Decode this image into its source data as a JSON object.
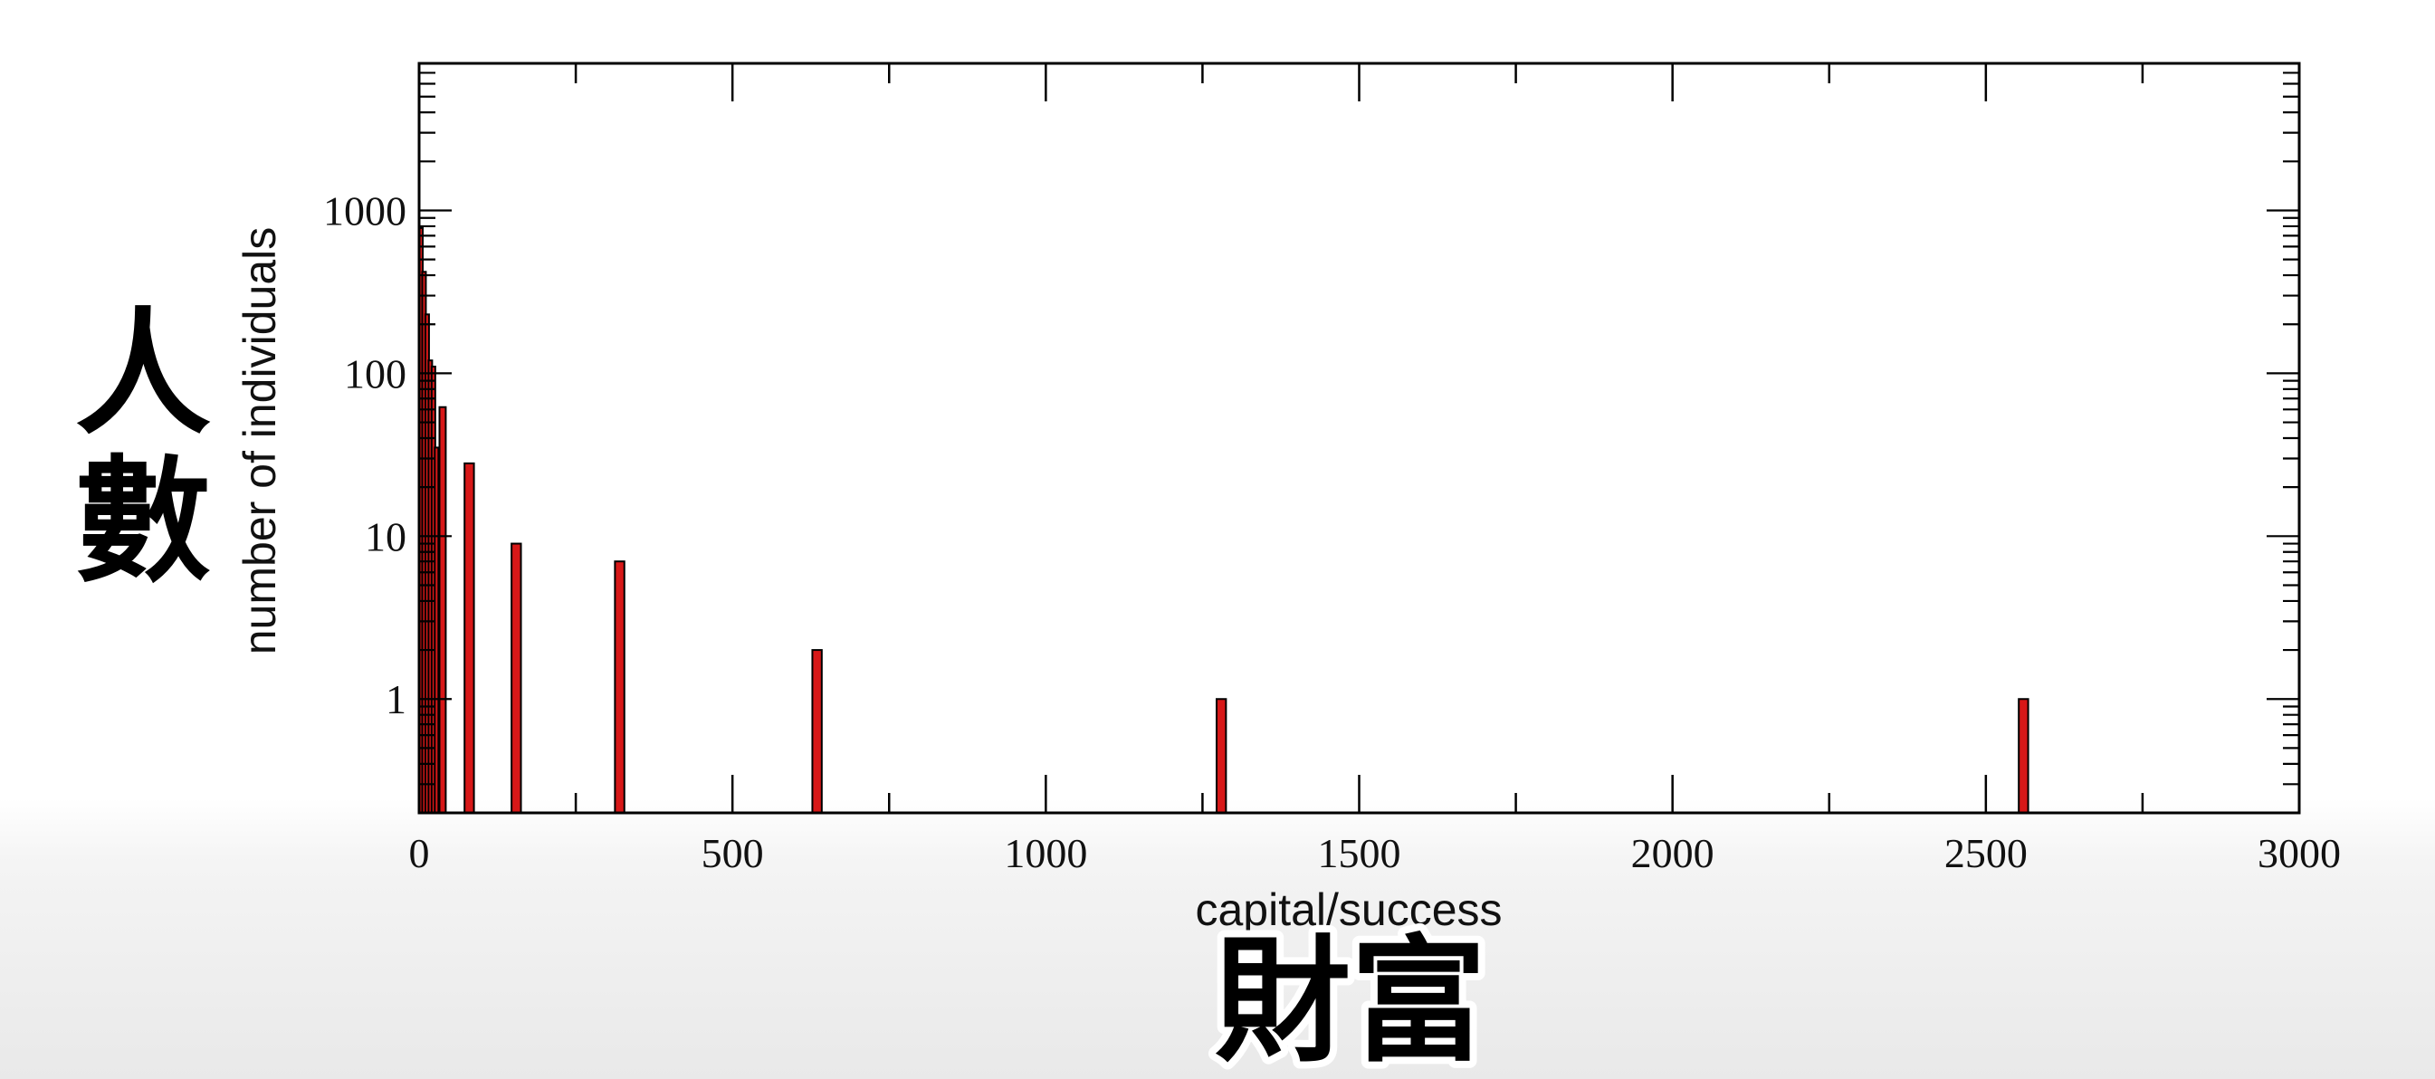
{
  "chart_data": {
    "type": "bar",
    "xlabel": "capital/success",
    "ylabel": "number of individuals",
    "xlim": [
      0,
      3000
    ],
    "ylim": [
      0.2,
      8000
    ],
    "yscale": "log",
    "xticks": [
      0,
      500,
      1000,
      1500,
      2000,
      2500,
      3000
    ],
    "yticks": [
      1,
      10,
      100,
      1000
    ],
    "ytick_labels": [
      "1",
      "10",
      "100",
      "1000"
    ],
    "bar_color": "#d71818",
    "grid": false,
    "bars": [
      {
        "x": 2.5,
        "width": 5,
        "value": 780
      },
      {
        "x": 7.5,
        "width": 5,
        "value": 420
      },
      {
        "x": 12.5,
        "width": 5,
        "value": 230
      },
      {
        "x": 17.5,
        "width": 5,
        "value": 120
      },
      {
        "x": 22.5,
        "width": 5,
        "value": 110
      },
      {
        "x": 27.5,
        "width": 5,
        "value": 35
      },
      {
        "x": 37.5,
        "width": 10,
        "value": 62
      },
      {
        "x": 80,
        "width": 15,
        "value": 28
      },
      {
        "x": 155,
        "width": 15,
        "value": 9
      },
      {
        "x": 320,
        "width": 15,
        "value": 7
      },
      {
        "x": 635,
        "width": 15,
        "value": 2
      },
      {
        "x": 1280,
        "width": 15,
        "value": 1
      },
      {
        "x": 2560,
        "width": 15,
        "value": 1
      }
    ]
  },
  "overlay": {
    "y_caption": [
      "人",
      "數"
    ],
    "x_caption": "財富"
  }
}
